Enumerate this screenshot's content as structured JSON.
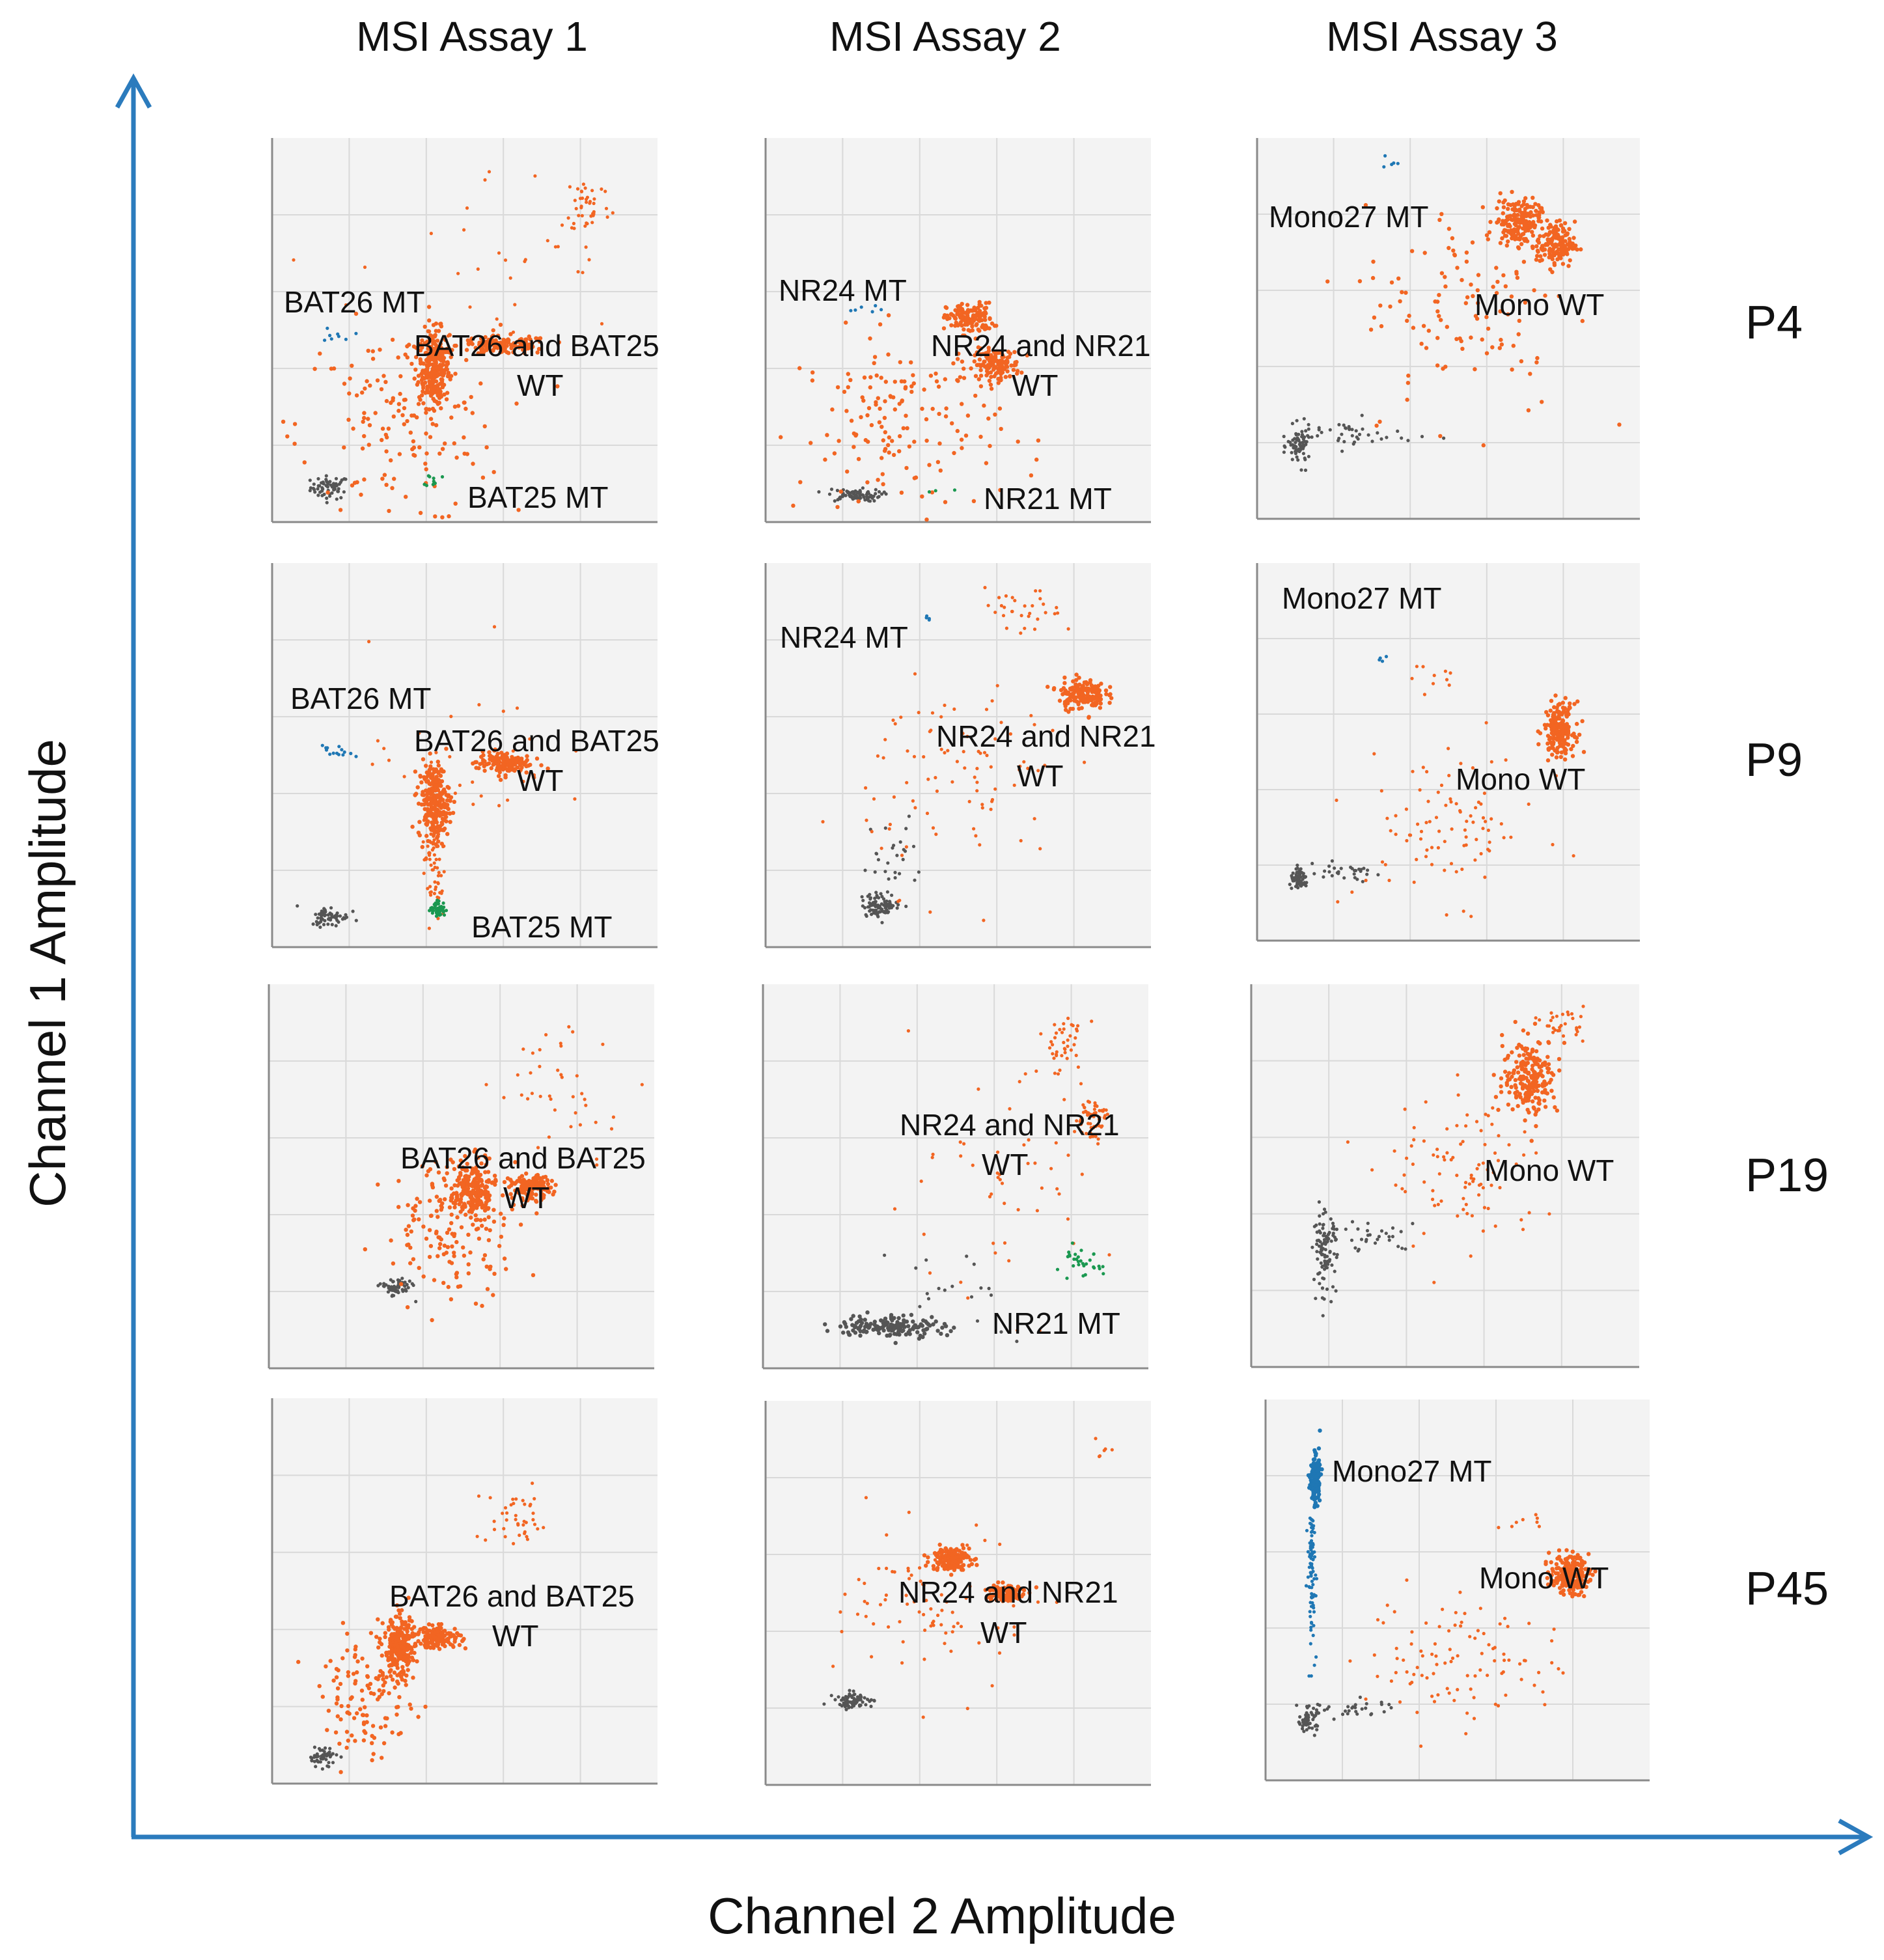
{
  "chart_data": {
    "type": "scatter",
    "title": "",
    "xlabel": "Channel 2 Amplitude",
    "ylabel": "Channel 1 Amplitude",
    "assays": [
      "MSI Assay 1",
      "MSI Assay 2",
      "MSI Assay 3"
    ],
    "samples": [
      "P4",
      "P9",
      "P19",
      "P45"
    ],
    "axis_range_note": "relative amplitude, 0-100 both axes (no tick labels shown)",
    "xlim": [
      0,
      100
    ],
    "ylim": [
      0,
      100
    ],
    "grid": true,
    "series_colors": {
      "negative": "#555555",
      "wild_type": "#f26522",
      "mutant_ch1": "#1f77b4",
      "mutant_ch2": "#1a9850"
    },
    "panels": [
      {
        "assay": "MSI Assay 1",
        "sample": "P4",
        "labels": [
          "BAT26 MT",
          "BAT26  and BAT25",
          "WT",
          "BAT25 MT"
        ],
        "clusters": [
          {
            "kind": "negative",
            "x": 15,
            "y": 9,
            "n": 60,
            "sx": 2.5,
            "sy": 1.5
          },
          {
            "kind": "wild_type",
            "x": 42,
            "y": 40,
            "n": 280,
            "sx": 2,
            "sy": 5
          },
          {
            "kind": "wild_type",
            "x": 60,
            "y": 46,
            "n": 140,
            "sx": 6,
            "sy": 1.2
          },
          {
            "kind": "wild_type",
            "x": 33,
            "y": 25,
            "n": 150,
            "sx": 13,
            "sy": 13
          },
          {
            "kind": "wild_type",
            "x": 82,
            "y": 83,
            "n": 40,
            "sx": 3,
            "sy": 4
          },
          {
            "kind": "wild_type",
            "x": 58,
            "y": 65,
            "n": 30,
            "sx": 18,
            "sy": 14
          },
          {
            "kind": "mutant_ch1",
            "x": 17,
            "y": 49,
            "n": 8,
            "sx": 2,
            "sy": 1
          },
          {
            "kind": "mutant_ch2",
            "x": 42,
            "y": 11,
            "n": 10,
            "sx": 1,
            "sy": 1
          }
        ]
      },
      {
        "assay": "MSI Assay 2",
        "sample": "P4",
        "labels": [
          "NR24 MT",
          "NR24 and NR21",
          "WT",
          "NR21 MT"
        ],
        "clusters": [
          {
            "kind": "negative",
            "x": 23,
            "y": 7,
            "n": 80,
            "sx": 3.5,
            "sy": 0.8
          },
          {
            "kind": "wild_type",
            "x": 53,
            "y": 53,
            "n": 140,
            "sx": 3,
            "sy": 2
          },
          {
            "kind": "wild_type",
            "x": 60,
            "y": 41,
            "n": 140,
            "sx": 3,
            "sy": 2
          },
          {
            "kind": "wild_type",
            "x": 35,
            "y": 25,
            "n": 160,
            "sx": 13,
            "sy": 12
          },
          {
            "kind": "mutant_ch1",
            "x": 25,
            "y": 56,
            "n": 6,
            "sx": 3,
            "sy": 1
          },
          {
            "kind": "mutant_ch2",
            "x": 45,
            "y": 8,
            "n": 3,
            "sx": 3,
            "sy": 1
          }
        ]
      },
      {
        "assay": "MSI Assay 3",
        "sample": "P4",
        "labels": [
          "Mono27 MT",
          "Mono WT"
        ],
        "clusters": [
          {
            "kind": "negative",
            "x": 11,
            "y": 19,
            "n": 70,
            "sx": 1.5,
            "sy": 2.5
          },
          {
            "kind": "negative",
            "x": 25,
            "y": 22,
            "n": 40,
            "sx": 8,
            "sy": 2
          },
          {
            "kind": "wild_type",
            "x": 68,
            "y": 78,
            "n": 180,
            "sx": 3,
            "sy": 3
          },
          {
            "kind": "wild_type",
            "x": 78,
            "y": 72,
            "n": 150,
            "sx": 2.5,
            "sy": 3
          },
          {
            "kind": "wild_type",
            "x": 55,
            "y": 55,
            "n": 110,
            "sx": 14,
            "sy": 14
          },
          {
            "kind": "mutant_ch1",
            "x": 35,
            "y": 94,
            "n": 5,
            "sx": 1,
            "sy": 1
          }
        ]
      },
      {
        "assay": "MSI Assay 1",
        "sample": "P9",
        "labels": [
          "BAT26 MT",
          "BAT26  and BAT25",
          "WT",
          "BAT25 MT"
        ],
        "clusters": [
          {
            "kind": "negative",
            "x": 15,
            "y": 8,
            "n": 60,
            "sx": 2.5,
            "sy": 1.3
          },
          {
            "kind": "wild_type",
            "x": 42,
            "y": 38,
            "n": 250,
            "sx": 2,
            "sy": 5
          },
          {
            "kind": "wild_type",
            "x": 60,
            "y": 48,
            "n": 140,
            "sx": 3.5,
            "sy": 1.5
          },
          {
            "kind": "wild_type",
            "x": 42,
            "y": 22,
            "n": 70,
            "sx": 1.5,
            "sy": 8
          },
          {
            "kind": "wild_type",
            "x": 50,
            "y": 50,
            "n": 30,
            "sx": 12,
            "sy": 14
          },
          {
            "kind": "mutant_ch1",
            "x": 17,
            "y": 51,
            "n": 14,
            "sx": 2,
            "sy": 0.8
          },
          {
            "kind": "mutant_ch2",
            "x": 43,
            "y": 10,
            "n": 50,
            "sx": 1,
            "sy": 1
          }
        ]
      },
      {
        "assay": "MSI Assay 2",
        "sample": "P9",
        "labels": [
          "NR24 MT",
          "NR24 and NR21",
          "WT"
        ],
        "clusters": [
          {
            "kind": "negative",
            "x": 30,
            "y": 11,
            "n": 90,
            "sx": 2.5,
            "sy": 1.5
          },
          {
            "kind": "negative",
            "x": 33,
            "y": 23,
            "n": 25,
            "sx": 4,
            "sy": 6
          },
          {
            "kind": "wild_type",
            "x": 82,
            "y": 66,
            "n": 160,
            "sx": 3,
            "sy": 2
          },
          {
            "kind": "wild_type",
            "x": 67,
            "y": 87,
            "n": 30,
            "sx": 5,
            "sy": 3
          },
          {
            "kind": "wild_type",
            "x": 52,
            "y": 45,
            "n": 90,
            "sx": 13,
            "sy": 14
          },
          {
            "kind": "mutant_ch1",
            "x": 42,
            "y": 85,
            "n": 4,
            "sx": 2,
            "sy": 2
          }
        ]
      },
      {
        "assay": "MSI Assay 3",
        "sample": "P9",
        "labels": [
          "Mono27 MT",
          "Mono WT"
        ],
        "clusters": [
          {
            "kind": "negative",
            "x": 11,
            "y": 16,
            "n": 60,
            "sx": 1.2,
            "sy": 1.2
          },
          {
            "kind": "negative",
            "x": 22,
            "y": 18,
            "n": 30,
            "sx": 6,
            "sy": 1.2
          },
          {
            "kind": "wild_type",
            "x": 79,
            "y": 56,
            "n": 180,
            "sx": 2,
            "sy": 3.5
          },
          {
            "kind": "wild_type",
            "x": 50,
            "y": 30,
            "n": 90,
            "sx": 12,
            "sy": 10
          },
          {
            "kind": "wild_type",
            "x": 45,
            "y": 70,
            "n": 10,
            "sx": 5,
            "sy": 2
          },
          {
            "kind": "mutant_ch1",
            "x": 33,
            "y": 74,
            "n": 4,
            "sx": 1,
            "sy": 1
          }
        ]
      },
      {
        "assay": "MSI Assay 1",
        "sample": "P19",
        "labels": [
          "BAT26  and BAT25",
          "WT"
        ],
        "clusters": [
          {
            "kind": "negative",
            "x": 33,
            "y": 21,
            "n": 60,
            "sx": 2,
            "sy": 1.2
          },
          {
            "kind": "wild_type",
            "x": 53,
            "y": 46,
            "n": 220,
            "sx": 3,
            "sy": 4
          },
          {
            "kind": "wild_type",
            "x": 68,
            "y": 47,
            "n": 150,
            "sx": 2.5,
            "sy": 1.5
          },
          {
            "kind": "wild_type",
            "x": 48,
            "y": 37,
            "n": 150,
            "sx": 9,
            "sy": 9
          },
          {
            "kind": "wild_type",
            "x": 78,
            "y": 73,
            "n": 40,
            "sx": 10,
            "sy": 8
          }
        ]
      },
      {
        "assay": "MSI Assay 2",
        "sample": "P19",
        "labels": [
          "NR24 and NR21",
          "WT",
          "NR21 MT"
        ],
        "clusters": [
          {
            "kind": "negative",
            "x": 33,
            "y": 11,
            "n": 150,
            "sx": 7,
            "sy": 1.5
          },
          {
            "kind": "negative",
            "x": 50,
            "y": 20,
            "n": 20,
            "sx": 10,
            "sy": 6
          },
          {
            "kind": "wild_type",
            "x": 85,
            "y": 65,
            "n": 60,
            "sx": 2,
            "sy": 3
          },
          {
            "kind": "wild_type",
            "x": 78,
            "y": 85,
            "n": 40,
            "sx": 3,
            "sy": 4
          },
          {
            "kind": "wild_type",
            "x": 60,
            "y": 45,
            "n": 50,
            "sx": 15,
            "sy": 15
          },
          {
            "kind": "mutant_ch2",
            "x": 82,
            "y": 27,
            "n": 30,
            "sx": 3,
            "sy": 2
          }
        ]
      },
      {
        "assay": "MSI Assay 3",
        "sample": "P19",
        "labels": [
          "Mono WT"
        ],
        "clusters": [
          {
            "kind": "negative",
            "x": 19,
            "y": 30,
            "n": 100,
            "sx": 1.5,
            "sy": 5
          },
          {
            "kind": "negative",
            "x": 32,
            "y": 34,
            "n": 30,
            "sx": 6,
            "sy": 2
          },
          {
            "kind": "wild_type",
            "x": 72,
            "y": 76,
            "n": 220,
            "sx": 3.5,
            "sy": 5
          },
          {
            "kind": "wild_type",
            "x": 55,
            "y": 50,
            "n": 90,
            "sx": 10,
            "sy": 10
          },
          {
            "kind": "wild_type",
            "x": 80,
            "y": 90,
            "n": 30,
            "sx": 3,
            "sy": 2
          }
        ]
      },
      {
        "assay": "MSI Assay 1",
        "sample": "P45",
        "labels": [
          "BAT26  and BAT25",
          "WT"
        ],
        "clusters": [
          {
            "kind": "negative",
            "x": 13,
            "y": 7,
            "n": 50,
            "sx": 1.8,
            "sy": 1.3
          },
          {
            "kind": "wild_type",
            "x": 33,
            "y": 35,
            "n": 250,
            "sx": 2,
            "sy": 4
          },
          {
            "kind": "wild_type",
            "x": 43,
            "y": 38,
            "n": 150,
            "sx": 3,
            "sy": 1.4
          },
          {
            "kind": "wild_type",
            "x": 25,
            "y": 22,
            "n": 120,
            "sx": 6,
            "sy": 8
          },
          {
            "kind": "wild_type",
            "x": 63,
            "y": 68,
            "n": 40,
            "sx": 5,
            "sy": 4
          }
        ]
      },
      {
        "assay": "MSI Assay 2",
        "sample": "P45",
        "labels": [
          "NR24 and NR21",
          "WT"
        ],
        "clusters": [
          {
            "kind": "negative",
            "x": 23,
            "y": 22,
            "n": 70,
            "sx": 2.5,
            "sy": 1
          },
          {
            "kind": "wild_type",
            "x": 48,
            "y": 59,
            "n": 150,
            "sx": 2.5,
            "sy": 1.5
          },
          {
            "kind": "wild_type",
            "x": 62,
            "y": 50,
            "n": 120,
            "sx": 2.5,
            "sy": 1.2
          },
          {
            "kind": "wild_type",
            "x": 45,
            "y": 45,
            "n": 80,
            "sx": 12,
            "sy": 10
          },
          {
            "kind": "wild_type",
            "x": 88,
            "y": 87,
            "n": 6,
            "sx": 1,
            "sy": 1
          }
        ]
      },
      {
        "assay": "MSI Assay 3",
        "sample": "P45",
        "labels": [
          "Mono27 MT",
          "Mono WT"
        ],
        "clusters": [
          {
            "kind": "negative",
            "x": 11,
            "y": 16,
            "n": 60,
            "sx": 1.2,
            "sy": 1.5
          },
          {
            "kind": "negative",
            "x": 22,
            "y": 19,
            "n": 30,
            "sx": 6,
            "sy": 1.2
          },
          {
            "kind": "mutant_ch1",
            "x": 13,
            "y": 79,
            "n": 180,
            "sx": 0.6,
            "sy": 3
          },
          {
            "kind": "mutant_ch1",
            "x": 12,
            "y": 55,
            "n": 90,
            "sx": 0.5,
            "sy": 10
          },
          {
            "kind": "wild_type",
            "x": 79,
            "y": 54,
            "n": 200,
            "sx": 2.5,
            "sy": 2.5
          },
          {
            "kind": "wild_type",
            "x": 52,
            "y": 32,
            "n": 100,
            "sx": 13,
            "sy": 9
          },
          {
            "kind": "wild_type",
            "x": 67,
            "y": 69,
            "n": 8,
            "sx": 3,
            "sy": 2
          }
        ]
      }
    ]
  }
}
